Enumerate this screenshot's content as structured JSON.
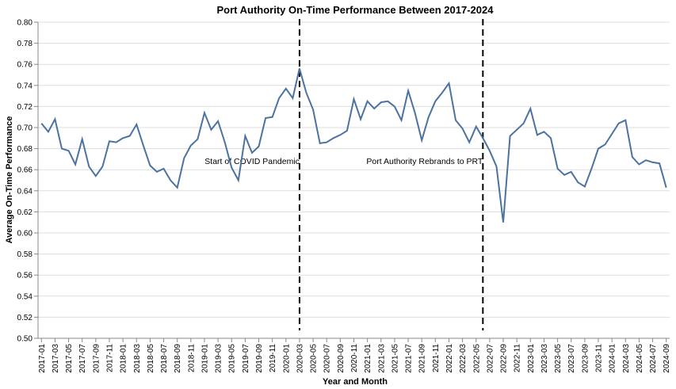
{
  "chart_data": {
    "type": "line",
    "title": "Port Authority On-Time Performance Between 2017-2024",
    "xlabel": "Year and Month",
    "ylabel": "Average On-Time Performance",
    "ylim": [
      0.5,
      0.8
    ],
    "yticks": [
      0.5,
      0.52,
      0.54,
      0.56,
      0.58,
      0.6,
      0.62,
      0.64,
      0.66,
      0.68,
      0.7,
      0.72,
      0.74,
      0.76,
      0.78,
      0.8
    ],
    "grid": true,
    "line_color": "#4c72a0",
    "x": [
      "2017-01",
      "2017-02",
      "2017-03",
      "2017-04",
      "2017-05",
      "2017-06",
      "2017-07",
      "2017-08",
      "2017-09",
      "2017-10",
      "2017-11",
      "2017-12",
      "2018-01",
      "2018-02",
      "2018-03",
      "2018-04",
      "2018-05",
      "2018-06",
      "2018-07",
      "2018-08",
      "2018-09",
      "2018-10",
      "2018-11",
      "2018-12",
      "2019-01",
      "2019-02",
      "2019-03",
      "2019-04",
      "2019-05",
      "2019-06",
      "2019-07",
      "2019-08",
      "2019-09",
      "2019-10",
      "2019-11",
      "2019-12",
      "2020-01",
      "2020-02",
      "2020-03",
      "2020-04",
      "2020-05",
      "2020-06",
      "2020-07",
      "2020-08",
      "2020-09",
      "2020-10",
      "2020-11",
      "2020-12",
      "2021-01",
      "2021-02",
      "2021-03",
      "2021-04",
      "2021-05",
      "2021-06",
      "2021-07",
      "2021-08",
      "2021-09",
      "2021-10",
      "2021-11",
      "2021-12",
      "2022-01",
      "2022-02",
      "2022-03",
      "2022-04",
      "2022-05",
      "2022-06",
      "2022-07",
      "2022-08",
      "2022-09",
      "2022-10",
      "2022-11",
      "2022-12",
      "2023-01",
      "2023-02",
      "2023-03",
      "2023-04",
      "2023-05",
      "2023-06",
      "2023-07",
      "2023-08",
      "2023-09",
      "2023-10",
      "2023-11",
      "2023-12",
      "2024-01",
      "2024-02",
      "2024-03",
      "2024-04",
      "2024-05",
      "2024-06",
      "2024-07",
      "2024-08",
      "2024-09"
    ],
    "xtick_labels": [
      "2017-01",
      "2017-03",
      "2017-05",
      "2017-07",
      "2017-09",
      "2017-11",
      "2018-01",
      "2018-03",
      "2018-05",
      "2018-07",
      "2018-09",
      "2018-11",
      "2019-01",
      "2019-03",
      "2019-05",
      "2019-07",
      "2019-09",
      "2019-11",
      "2020-01",
      "2020-03",
      "2020-05",
      "2020-07",
      "2020-09",
      "2020-11",
      "2021-01",
      "2021-03",
      "2021-05",
      "2021-07",
      "2021-09",
      "2021-11",
      "2022-01",
      "2022-03",
      "2022-05",
      "2022-07",
      "2022-09",
      "2022-11",
      "2023-01",
      "2023-03",
      "2023-05",
      "2023-07",
      "2023-09",
      "2023-11",
      "2024-01",
      "2024-03",
      "2024-05",
      "2024-07",
      "2024-09"
    ],
    "values": [
      0.704,
      0.696,
      0.708,
      0.68,
      0.678,
      0.665,
      0.689,
      0.663,
      0.654,
      0.663,
      0.687,
      0.686,
      0.69,
      0.692,
      0.703,
      0.683,
      0.664,
      0.658,
      0.661,
      0.65,
      0.643,
      0.671,
      0.683,
      0.689,
      0.714,
      0.698,
      0.706,
      0.686,
      0.662,
      0.65,
      0.692,
      0.676,
      0.682,
      0.709,
      0.71,
      0.728,
      0.737,
      0.728,
      0.756,
      0.733,
      0.717,
      0.685,
      0.686,
      0.69,
      0.693,
      0.697,
      0.727,
      0.708,
      0.725,
      0.718,
      0.724,
      0.725,
      0.72,
      0.707,
      0.735,
      0.714,
      0.688,
      0.71,
      0.725,
      0.733,
      0.742,
      0.707,
      0.699,
      0.686,
      0.701,
      0.69,
      0.678,
      0.663,
      0.61,
      0.692,
      0.698,
      0.704,
      0.718,
      0.693,
      0.696,
      0.69,
      0.661,
      0.655,
      0.658,
      0.648,
      0.644,
      0.661,
      0.68,
      0.684,
      0.694,
      0.704,
      0.707,
      0.672,
      0.665,
      0.669,
      0.667,
      0.666,
      0.643
    ],
    "annotations": [
      {
        "label": "Start of COVID Pandemic",
        "x": "2020-03"
      },
      {
        "label": "Port Authority Rebrands to PRT",
        "x": "2022-06"
      }
    ]
  }
}
